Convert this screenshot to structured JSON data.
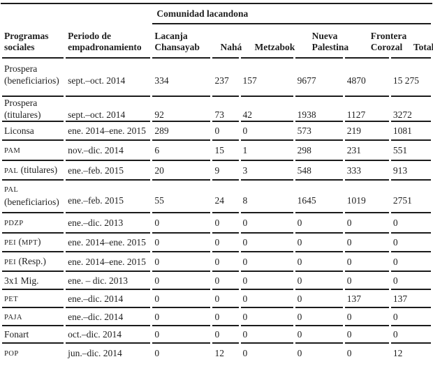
{
  "table": {
    "group_header": "Comunidad lacandona",
    "columns": [
      "Programas sociales",
      "Periodo de empadronamiento",
      "Lacanja Chansayab",
      "Nahá",
      "Metzabok",
      "Nueva Palestina",
      "Frontera Corozal",
      "Total"
    ],
    "rows": [
      {
        "program": [
          [
            {
              "t": "Prospera"
            }
          ],
          [
            {
              "t": "(beneficiarios)"
            }
          ]
        ],
        "period": "sept.–oct. 2014",
        "values": [
          "334",
          "237",
          "157",
          "9677",
          "4870",
          "15 275"
        ]
      },
      {
        "program": [
          [
            {
              "t": "Prospera"
            }
          ],
          [
            {
              "t": "(titulares)"
            }
          ]
        ],
        "period": "sept.–oct. 2014",
        "values": [
          "92",
          "73",
          "42",
          "1938",
          "1127",
          "3272"
        ]
      },
      {
        "program": [
          [
            {
              "t": "Liconsa"
            }
          ]
        ],
        "period": "ene. 2014–ene. 2015",
        "values": [
          "289",
          "0",
          "0",
          "573",
          "219",
          "1081"
        ]
      },
      {
        "program": [
          [
            {
              "t": "PAM",
              "sc": true
            }
          ]
        ],
        "period": "nov.–dic. 2014",
        "values": [
          "6",
          "15",
          "1",
          "298",
          "231",
          "551"
        ]
      },
      {
        "program": [
          [
            {
              "t": "PAL",
              "sc": true
            },
            {
              "t": " (titulares)"
            }
          ]
        ],
        "period": "ene.–feb. 2015",
        "values": [
          "20",
          "9",
          "3",
          "548",
          "333",
          "913"
        ]
      },
      {
        "program": [
          [
            {
              "t": "PAL",
              "sc": true
            }
          ],
          [
            {
              "t": "(beneficiarios)"
            }
          ]
        ],
        "period": "ene.–feb. 2015",
        "values": [
          "55",
          "24",
          "8",
          "1645",
          "1019",
          "2751"
        ]
      },
      {
        "program": [
          [
            {
              "t": "PDZP",
              "sc": true
            }
          ]
        ],
        "period": "ene.–dic. 2013",
        "values": [
          "0",
          "0",
          "0",
          "0",
          "0",
          "0"
        ]
      },
      {
        "program": [
          [
            {
              "t": "PEI",
              "sc": true
            },
            {
              "t": " ("
            },
            {
              "t": "MPT",
              "sc": true
            },
            {
              "t": ")"
            }
          ]
        ],
        "period": "ene. 2014–ene. 2015",
        "values": [
          "0",
          "0",
          "0",
          "0",
          "0",
          "0"
        ]
      },
      {
        "program": [
          [
            {
              "t": "PEI",
              "sc": true
            },
            {
              "t": " (Resp.)"
            }
          ]
        ],
        "period": "ene. 2014–ene. 2015",
        "values": [
          "0",
          "0",
          "0",
          "0",
          "0",
          "0"
        ]
      },
      {
        "program": [
          [
            {
              "t": "3x1 Mig."
            }
          ]
        ],
        "period": "ene. – dic. 2013",
        "values": [
          "0",
          "0",
          "0",
          "0",
          "0",
          "0"
        ]
      },
      {
        "program": [
          [
            {
              "t": "PET",
              "sc": true
            }
          ]
        ],
        "period": "ene.–dic. 2014",
        "values": [
          "0",
          "0",
          "0",
          "0",
          "137",
          "137"
        ]
      },
      {
        "program": [
          [
            {
              "t": "PAJA",
              "sc": true
            }
          ]
        ],
        "period": "ene.–dic. 2014",
        "values": [
          "0",
          "0",
          "0",
          "0",
          "0",
          "0"
        ]
      },
      {
        "program": [
          [
            {
              "t": "Fonart"
            }
          ]
        ],
        "period": "oct.–dic. 2014",
        "values": [
          "0",
          "0",
          "0",
          "0",
          "0",
          "0"
        ]
      },
      {
        "program": [
          [
            {
              "t": "POP",
              "sc": true
            }
          ]
        ],
        "period": "jun.–dic. 2014",
        "values": [
          "0",
          "12",
          "0",
          "0",
          "0",
          "12"
        ]
      }
    ]
  }
}
